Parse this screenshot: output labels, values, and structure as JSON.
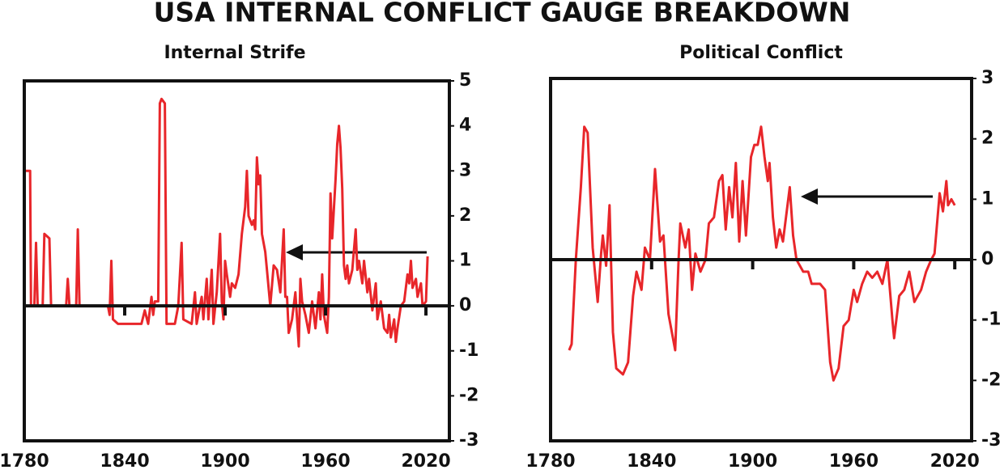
{
  "title": "USA INTERNAL CONFLICT GAUGE BREAKDOWN",
  "chart_data": [
    {
      "type": "line",
      "title": "Internal Strife",
      "x": [
        1780,
        1783.5,
        1784,
        1786,
        1787,
        1788,
        1791,
        1792,
        1795,
        1796,
        1805,
        1806,
        1807,
        1811,
        1812,
        1813,
        1830,
        1831,
        1832,
        1833,
        1836,
        1850,
        1852,
        1854,
        1856,
        1857,
        1858,
        1860,
        1861,
        1862,
        1864,
        1865,
        1870,
        1872,
        1874,
        1875,
        1880,
        1882,
        1883,
        1886,
        1887,
        1889,
        1890,
        1892,
        1893,
        1895,
        1897,
        1898,
        1899,
        1900,
        1901,
        1903,
        1904,
        1906,
        1908,
        1910,
        1912,
        1913,
        1914,
        1916,
        1917,
        1918,
        1919,
        1920,
        1921,
        1922,
        1924,
        1925,
        1927,
        1929,
        1931,
        1933,
        1935,
        1936,
        1937,
        1938,
        1940,
        1942,
        1944,
        1945,
        1946,
        1948,
        1950,
        1952,
        1954,
        1956,
        1957,
        1958,
        1959,
        1961,
        1962,
        1963,
        1964,
        1966,
        1967,
        1968,
        1969,
        1970,
        1971,
        1972,
        1973,
        1974,
        1976,
        1978,
        1979,
        1980,
        1982,
        1983,
        1985,
        1986,
        1988,
        1990,
        1991,
        1993,
        1995,
        1997,
        1998,
        1999,
        2001,
        2002,
        2003,
        2005,
        2007,
        2009,
        2010,
        2011,
        2012,
        2014,
        2015,
        2017,
        2018,
        2020,
        2021
      ],
      "series": [
        {
          "color": "#e8262a",
          "values": [
            3,
            3,
            0,
            0,
            1.4,
            0,
            0,
            1.6,
            1.5,
            0,
            0,
            0.6,
            0,
            0,
            1.7,
            0,
            0,
            -0.2,
            1,
            -0.3,
            -0.4,
            -0.4,
            -0.1,
            -0.4,
            0.2,
            -0.2,
            0.1,
            0.1,
            4.5,
            4.6,
            4.5,
            -0.4,
            -0.4,
            0,
            1.4,
            -0.3,
            -0.4,
            0.3,
            -0.4,
            0.2,
            -0.3,
            0.6,
            -0.3,
            0.8,
            -0.4,
            0.3,
            1.6,
            0.1,
            -0.3,
            1,
            0.7,
            0.2,
            0.5,
            0.4,
            0.7,
            1.6,
            2.2,
            3,
            2,
            1.8,
            1.9,
            1.7,
            3.3,
            2.7,
            2.9,
            1.6,
            1.2,
            0.8,
            0,
            0.9,
            0.8,
            0.3,
            1.7,
            0.2,
            0.2,
            -0.6,
            -0.3,
            0.3,
            -0.9,
            0.6,
            0.1,
            -0.2,
            -0.6,
            0.1,
            -0.5,
            0.3,
            -0.3,
            0.7,
            -0.2,
            -0.6,
            0.2,
            2.5,
            1.5,
            2.8,
            3.6,
            4,
            3.5,
            2.6,
            0.9,
            0.6,
            0.9,
            0.5,
            0.8,
            1.7,
            0.8,
            1,
            0.5,
            1,
            0.3,
            0.6,
            -0.1,
            0.5,
            -0.3,
            0.1,
            -0.5,
            -0.6,
            -0.2,
            -0.7,
            -0.3,
            -0.8,
            -0.5,
            0,
            0.1,
            0.7,
            0.5,
            1,
            0.4,
            0.6,
            0.2,
            0.5,
            0,
            0.1,
            1.1
          ]
        }
      ],
      "xlim": [
        1780,
        2034
      ],
      "xticks": [
        1780,
        1840,
        1900,
        1960,
        2020
      ],
      "ylim": [
        -3,
        5
      ],
      "yticks": [
        5,
        4,
        3,
        2,
        1,
        0,
        -1,
        -2,
        -3
      ]
    },
    {
      "type": "line",
      "title": "Political Conflict",
      "x": [
        1791,
        1792.5,
        1795,
        1798,
        1800,
        1802,
        1805,
        1808,
        1810,
        1811,
        1813,
        1815,
        1817,
        1819,
        1823,
        1826,
        1829,
        1831,
        1834,
        1836,
        1839,
        1842,
        1845,
        1847,
        1850,
        1854,
        1856,
        1857,
        1860,
        1862,
        1864,
        1866,
        1869,
        1872,
        1874,
        1877,
        1880,
        1882,
        1884,
        1886,
        1888,
        1890,
        1892,
        1894,
        1896,
        1899,
        1901,
        1903,
        1905,
        1907,
        1909,
        1910,
        1912,
        1914,
        1916,
        1918,
        1922,
        1924,
        1926,
        1930,
        1933,
        1935,
        1940,
        1943,
        1946,
        1948,
        1951,
        1954,
        1957,
        1960,
        1962,
        1965,
        1968,
        1971,
        1974,
        1977,
        1980,
        1983,
        1984,
        1987,
        1990,
        1993,
        1996,
        2000,
        2003,
        2006,
        2008,
        2011,
        2013,
        2015,
        2016,
        2018,
        2020
      ],
      "series": [
        {
          "color": "#e8262a",
          "values": [
            -1.5,
            -1.4,
            0,
            1.2,
            2.2,
            2.1,
            0.2,
            -0.7,
            0.1,
            0.4,
            -0.1,
            0.9,
            -1.2,
            -1.8,
            -1.9,
            -1.7,
            -0.6,
            -0.2,
            -0.5,
            0.2,
            0,
            1.5,
            0.3,
            0.4,
            -0.9,
            -1.5,
            0,
            0.6,
            0.2,
            0.5,
            -0.5,
            0.1,
            -0.2,
            0,
            0.6,
            0.7,
            1.3,
            1.4,
            0.5,
            1.2,
            0.7,
            1.6,
            0.3,
            1.3,
            0.4,
            1.7,
            1.9,
            1.9,
            2.2,
            1.7,
            1.3,
            1.6,
            0.7,
            0.2,
            0.5,
            0.3,
            1.2,
            0.4,
            0,
            -0.2,
            -0.2,
            -0.4,
            -0.4,
            -0.5,
            -1.7,
            -2,
            -1.8,
            -1.1,
            -1,
            -0.5,
            -0.7,
            -0.4,
            -0.2,
            -0.3,
            -0.2,
            -0.4,
            0,
            -1,
            -1.3,
            -0.6,
            -0.5,
            -0.2,
            -0.7,
            -0.5,
            -0.2,
            0,
            0.1,
            1.1,
            0.8,
            1.3,
            0.9,
            1,
            0.9
          ]
        }
      ],
      "xlim": [
        1780,
        2030
      ],
      "xticks": [
        1780,
        1840,
        1900,
        1960,
        2020
      ],
      "ylim": [
        -3,
        3
      ],
      "yticks": [
        3,
        2,
        1,
        0,
        -1,
        -2,
        -3
      ]
    }
  ]
}
